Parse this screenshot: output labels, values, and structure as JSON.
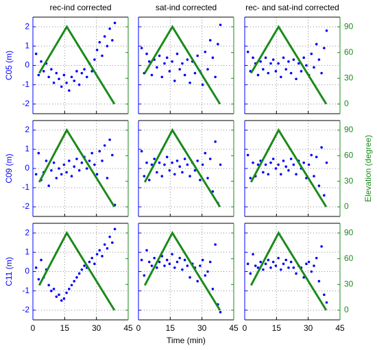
{
  "chart_data": [
    {
      "type": "scatter",
      "title": "rec-ind corrected",
      "ylabel": "C05 (m)",
      "xlim": [
        0,
        45
      ],
      "xticks": [
        0,
        15,
        30,
        45
      ],
      "ylim": [
        -2.5,
        2.5
      ],
      "yticks": [
        -2,
        -1,
        0,
        1,
        2
      ],
      "y2lim": [
        -11.25,
        101.25
      ],
      "y2ticks": [
        0,
        30,
        60,
        90
      ],
      "grid": true,
      "series": [
        {
          "type": "scatter",
          "color": "#0000ff",
          "x": [
            1.5,
            2.7,
            3.9,
            5.1,
            6.3,
            7.5,
            8.7,
            9.9,
            11.1,
            12.3,
            13.5,
            14.7,
            15.9,
            17.1,
            18.3,
            19.5,
            20.7,
            21.9,
            23.1,
            24.3,
            25.5,
            26.7,
            27.9,
            29.1,
            30.3,
            31.5,
            32.7,
            33.9,
            35.1,
            36.3,
            37.5,
            38.7
          ],
          "values": [
            0.6,
            -0.5,
            0.2,
            -0.3,
            0.1,
            -0.6,
            -0.2,
            -0.9,
            -0.4,
            -0.7,
            -1.1,
            -0.5,
            -0.9,
            -1.3,
            -0.6,
            -0.8,
            -0.3,
            -1.0,
            -0.4,
            -0.2,
            -0.6,
            0.1,
            -0.3,
            0.3,
            0.8,
            1.2,
            0.5,
            1.5,
            1.0,
            1.9,
            1.3,
            2.2
          ]
        },
        {
          "type": "line",
          "color": "#1a8a1a",
          "axis": "y2",
          "x": [
            3,
            16,
            38.5
          ],
          "values": [
            36,
            90,
            0
          ]
        }
      ]
    },
    {
      "type": "scatter",
      "title": "sat-ind corrected",
      "xlim": [
        0,
        45
      ],
      "xticks": [
        0,
        15,
        30,
        45
      ],
      "ylim": [
        -2.5,
        2.5
      ],
      "yticks": [
        -2,
        -1,
        0,
        1,
        2
      ],
      "y2lim": [
        -11.25,
        101.25
      ],
      "y2ticks": [
        0,
        30,
        60,
        90
      ],
      "grid": true,
      "series": [
        {
          "type": "scatter",
          "color": "#0000ff",
          "x": [
            1.5,
            2.7,
            3.9,
            5.1,
            6.3,
            7.5,
            8.7,
            9.9,
            11.1,
            12.3,
            13.5,
            14.7,
            15.9,
            17.1,
            18.3,
            19.5,
            20.7,
            21.9,
            23.1,
            24.3,
            25.5,
            26.7,
            27.9,
            29.1,
            30.3,
            31.5,
            32.7,
            33.9,
            35.1,
            36.3,
            37.5,
            38.7
          ],
          "values": [
            0.9,
            -0.4,
            0.6,
            0.2,
            -0.5,
            0.3,
            -0.1,
            0.5,
            -0.6,
            0.1,
            0.4,
            -0.3,
            0.2,
            -0.8,
            0.6,
            -0.2,
            0.1,
            -0.5,
            0.3,
            -0.9,
            0.2,
            -0.4,
            0.5,
            -0.3,
            -1.0,
            0.7,
            -0.2,
            1.3,
            0.4,
            -0.6,
            1.1,
            2.1
          ]
        },
        {
          "type": "line",
          "color": "#1a8a1a",
          "axis": "y2",
          "x": [
            3,
            16,
            38.5
          ],
          "values": [
            36,
            90,
            0
          ]
        }
      ]
    },
    {
      "type": "scatter",
      "title": "rec- and sat-ind corrected",
      "xlim": [
        0,
        45
      ],
      "xticks": [
        0,
        15,
        30,
        45
      ],
      "ylim": [
        -2.5,
        2.5
      ],
      "yticks": [
        -2,
        -1,
        0,
        1,
        2
      ],
      "y2lim": [
        -11.25,
        101.25
      ],
      "y2ticks": [
        0,
        30,
        60,
        90
      ],
      "grid": true,
      "series": [
        {
          "type": "scatter",
          "color": "#0000ff",
          "x": [
            1.5,
            2.7,
            3.9,
            5.1,
            6.3,
            7.5,
            8.7,
            9.9,
            11.1,
            12.3,
            13.5,
            14.7,
            15.9,
            17.1,
            18.3,
            19.5,
            20.7,
            21.9,
            23.1,
            24.3,
            25.5,
            26.7,
            27.9,
            29.1,
            30.3,
            31.5,
            32.7,
            33.9,
            35.1,
            36.3,
            37.5,
            38.7
          ],
          "values": [
            0.7,
            -0.3,
            0.4,
            0.1,
            -0.5,
            0.2,
            -0.2,
            0.4,
            -0.4,
            0.1,
            0.3,
            -0.3,
            0.1,
            -0.6,
            0.4,
            -0.2,
            0.2,
            -0.4,
            0.3,
            -0.7,
            0.1,
            -0.3,
            0.4,
            0.0,
            -0.5,
            0.6,
            -0.1,
            1.1,
            0.3,
            -0.4,
            0.9,
            1.8
          ]
        },
        {
          "type": "line",
          "color": "#1a8a1a",
          "axis": "y2",
          "x": [
            3,
            16,
            38.5
          ],
          "values": [
            36,
            90,
            0
          ]
        }
      ]
    },
    {
      "type": "scatter",
      "ylabel": "C09 (m)",
      "xlim": [
        0,
        45
      ],
      "xticks": [
        0,
        15,
        30,
        45
      ],
      "ylim": [
        -2.5,
        2.5
      ],
      "yticks": [
        -2,
        -1,
        0,
        1,
        2
      ],
      "y2lim": [
        -11.25,
        101.25
      ],
      "y2ticks": [
        0,
        30,
        60,
        90
      ],
      "grid": true,
      "series": [
        {
          "type": "scatter",
          "color": "#0000ff",
          "x": [
            1.5,
            2.7,
            3.9,
            5.1,
            6.3,
            7.5,
            8.7,
            9.9,
            11.1,
            12.3,
            13.5,
            14.7,
            15.9,
            17.1,
            18.3,
            19.5,
            20.7,
            21.9,
            23.1,
            24.3,
            25.5,
            26.7,
            27.9,
            29.1,
            30.3,
            31.5,
            32.7,
            33.9,
            35.1,
            36.3,
            37.5,
            38.7
          ],
          "values": [
            -0.3,
            0.8,
            -0.6,
            -0.2,
            0.4,
            -0.9,
            -0.1,
            0.3,
            -0.5,
            0.0,
            -0.3,
            0.2,
            -0.2,
            0.4,
            -0.4,
            0.1,
            0.5,
            -0.1,
            0.3,
            0.6,
            0.0,
            0.4,
            0.8,
            0.2,
            -0.3,
            0.9,
            0.4,
            1.2,
            -0.5,
            1.5,
            0.7,
            -1.9
          ]
        },
        {
          "type": "line",
          "color": "#1a8a1a",
          "axis": "y2",
          "x": [
            3,
            16,
            38.5
          ],
          "values": [
            29,
            90,
            0
          ]
        }
      ]
    },
    {
      "type": "scatter",
      "xlim": [
        0,
        45
      ],
      "xticks": [
        0,
        15,
        30,
        45
      ],
      "ylim": [
        -2.5,
        2.5
      ],
      "yticks": [
        -2,
        -1,
        0,
        1,
        2
      ],
      "y2lim": [
        -11.25,
        101.25
      ],
      "y2ticks": [
        0,
        30,
        60,
        90
      ],
      "grid": true,
      "series": [
        {
          "type": "scatter",
          "color": "#0000ff",
          "x": [
            1.5,
            2.7,
            3.9,
            5.1,
            6.3,
            7.5,
            8.7,
            9.9,
            11.1,
            12.3,
            13.5,
            14.7,
            15.9,
            17.1,
            18.3,
            19.5,
            20.7,
            21.9,
            23.1,
            24.3,
            25.5,
            26.7,
            27.9,
            29.1,
            30.3,
            31.5,
            32.7,
            33.9,
            35.1,
            36.3,
            37.5,
            38.7
          ],
          "values": [
            0.9,
            -0.4,
            0.3,
            -0.6,
            0.2,
            0.5,
            -0.2,
            0.3,
            -0.4,
            0.2,
            0.6,
            -0.1,
            0.3,
            -0.3,
            0.4,
            0.1,
            -0.2,
            0.5,
            0.2,
            -0.4,
            0.3,
            -0.1,
            0.4,
            -0.6,
            0.2,
            0.8,
            -0.5,
            0.5,
            -1.2,
            1.4,
            -1.8,
            0.2
          ]
        },
        {
          "type": "line",
          "color": "#1a8a1a",
          "axis": "y2",
          "x": [
            3,
            16,
            38.5
          ],
          "values": [
            29,
            90,
            0
          ]
        }
      ]
    },
    {
      "type": "scatter",
      "y2label": "Elevation (degree)",
      "xlim": [
        0,
        45
      ],
      "xticks": [
        0,
        15,
        30,
        45
      ],
      "ylim": [
        -2.5,
        2.5
      ],
      "yticks": [
        -2,
        -1,
        0,
        1,
        2
      ],
      "y2lim": [
        -11.25,
        101.25
      ],
      "y2ticks": [
        0,
        30,
        60,
        90
      ],
      "grid": true,
      "series": [
        {
          "type": "scatter",
          "color": "#0000ff",
          "x": [
            1.5,
            2.7,
            3.9,
            5.1,
            6.3,
            7.5,
            8.7,
            9.9,
            11.1,
            12.3,
            13.5,
            14.7,
            15.9,
            17.1,
            18.3,
            19.5,
            20.7,
            21.9,
            23.1,
            24.3,
            25.5,
            26.7,
            27.9,
            29.1,
            30.3,
            31.5,
            32.7,
            33.9,
            35.1,
            36.3,
            37.5,
            38.7
          ],
          "values": [
            0.7,
            -0.5,
            0.3,
            -0.4,
            0.2,
            0.4,
            -0.2,
            0.2,
            -0.3,
            0.3,
            0.5,
            0.0,
            0.2,
            -0.3,
            0.4,
            0.1,
            -0.1,
            0.5,
            0.2,
            -0.3,
            0.4,
            0.0,
            0.3,
            -0.5,
            0.2,
            0.7,
            -0.4,
            0.6,
            -0.9,
            1.1,
            -1.4,
            0.3
          ]
        },
        {
          "type": "line",
          "color": "#1a8a1a",
          "axis": "y2",
          "x": [
            3,
            16,
            38.5
          ],
          "values": [
            29,
            90,
            0
          ]
        }
      ]
    },
    {
      "type": "scatter",
      "ylabel": "C11 (m)",
      "xlim": [
        0,
        45
      ],
      "xticks": [
        0,
        15,
        30,
        45
      ],
      "ylim": [
        -2.5,
        2.5
      ],
      "yticks": [
        -2,
        -1,
        0,
        1,
        2
      ],
      "y2lim": [
        -11.25,
        101.25
      ],
      "y2ticks": [
        0,
        30,
        60,
        90
      ],
      "grid": true,
      "series": [
        {
          "type": "scatter",
          "color": "#0000ff",
          "x": [
            1.5,
            2.7,
            3.9,
            5.1,
            6.3,
            7.5,
            8.7,
            9.9,
            11.1,
            12.3,
            13.5,
            14.7,
            15.9,
            17.1,
            18.3,
            19.5,
            20.7,
            21.9,
            23.1,
            24.3,
            25.5,
            26.7,
            27.9,
            29.1,
            30.3,
            31.5,
            32.7,
            33.9,
            35.1,
            36.3,
            37.5,
            38.7
          ],
          "values": [
            0.2,
            -0.4,
            0.6,
            -0.3,
            0.1,
            -0.7,
            -1.0,
            -0.9,
            -1.3,
            -1.2,
            -1.5,
            -1.4,
            -1.1,
            -0.9,
            -0.7,
            -0.5,
            -0.3,
            -0.1,
            0.1,
            0.3,
            0.2,
            0.5,
            0.7,
            0.4,
            0.9,
            1.1,
            0.8,
            1.4,
            1.2,
            1.8,
            1.5,
            2.2
          ]
        },
        {
          "type": "line",
          "color": "#1a8a1a",
          "axis": "y2",
          "x": [
            3,
            16,
            38.5
          ],
          "values": [
            29,
            90,
            0
          ]
        }
      ]
    },
    {
      "type": "scatter",
      "xlabel": "Time (min)",
      "xlim": [
        0,
        45
      ],
      "xticks": [
        0,
        15,
        30,
        45
      ],
      "ylim": [
        -2.5,
        2.5
      ],
      "yticks": [
        -2,
        -1,
        0,
        1,
        2
      ],
      "y2lim": [
        -11.25,
        101.25
      ],
      "y2ticks": [
        0,
        30,
        60,
        90
      ],
      "grid": true,
      "series": [
        {
          "type": "scatter",
          "color": "#0000ff",
          "x": [
            1.5,
            2.7,
            3.9,
            5.1,
            6.3,
            7.5,
            8.7,
            9.9,
            11.1,
            12.3,
            13.5,
            14.7,
            15.9,
            17.1,
            18.3,
            19.5,
            20.7,
            21.9,
            23.1,
            24.3,
            25.5,
            26.7,
            27.9,
            29.1,
            30.3,
            31.5,
            32.7,
            33.9,
            35.1,
            36.3,
            37.5,
            38.7
          ],
          "values": [
            0.6,
            -0.2,
            1.1,
            0.5,
            0.3,
            0.7,
            0.2,
            0.5,
            0.8,
            0.3,
            0.6,
            0.4,
            0.9,
            0.2,
            0.5,
            0.7,
            0.1,
            0.6,
            0.3,
            -0.3,
            0.4,
            0.2,
            -0.5,
            0.3,
            0.6,
            -0.2,
            0.0,
            0.5,
            -0.9,
            1.4,
            -1.7,
            -2.1
          ]
        },
        {
          "type": "line",
          "color": "#1a8a1a",
          "axis": "y2",
          "x": [
            3,
            16,
            38.5
          ],
          "values": [
            29,
            90,
            0
          ]
        }
      ]
    },
    {
      "type": "scatter",
      "xlim": [
        0,
        45
      ],
      "xticks": [
        0,
        15,
        30,
        45
      ],
      "ylim": [
        -2.5,
        2.5
      ],
      "yticks": [
        -2,
        -1,
        0,
        1,
        2
      ],
      "y2lim": [
        -11.25,
        101.25
      ],
      "y2ticks": [
        0,
        30,
        60,
        90
      ],
      "grid": true,
      "series": [
        {
          "type": "scatter",
          "color": "#0000ff",
          "x": [
            1.5,
            2.7,
            3.9,
            5.1,
            6.3,
            7.5,
            8.7,
            9.9,
            11.1,
            12.3,
            13.5,
            14.7,
            15.9,
            17.1,
            18.3,
            19.5,
            20.7,
            21.9,
            23.1,
            24.3,
            25.5,
            26.7,
            27.9,
            29.1,
            30.3,
            31.5,
            32.7,
            33.9,
            35.1,
            36.3,
            37.5,
            38.7
          ],
          "values": [
            0.4,
            -0.1,
            0.9,
            0.3,
            0.2,
            0.5,
            0.1,
            0.4,
            0.6,
            0.2,
            0.5,
            0.3,
            0.7,
            0.1,
            0.4,
            0.6,
            0.2,
            0.5,
            0.2,
            -0.1,
            0.3,
            0.2,
            -0.3,
            0.4,
            0.5,
            0.0,
            0.3,
            0.7,
            -0.5,
            1.3,
            -1.2,
            -1.6
          ]
        },
        {
          "type": "line",
          "color": "#1a8a1a",
          "axis": "y2",
          "x": [
            3,
            16,
            38.5
          ],
          "values": [
            29,
            90,
            0
          ]
        }
      ]
    }
  ]
}
